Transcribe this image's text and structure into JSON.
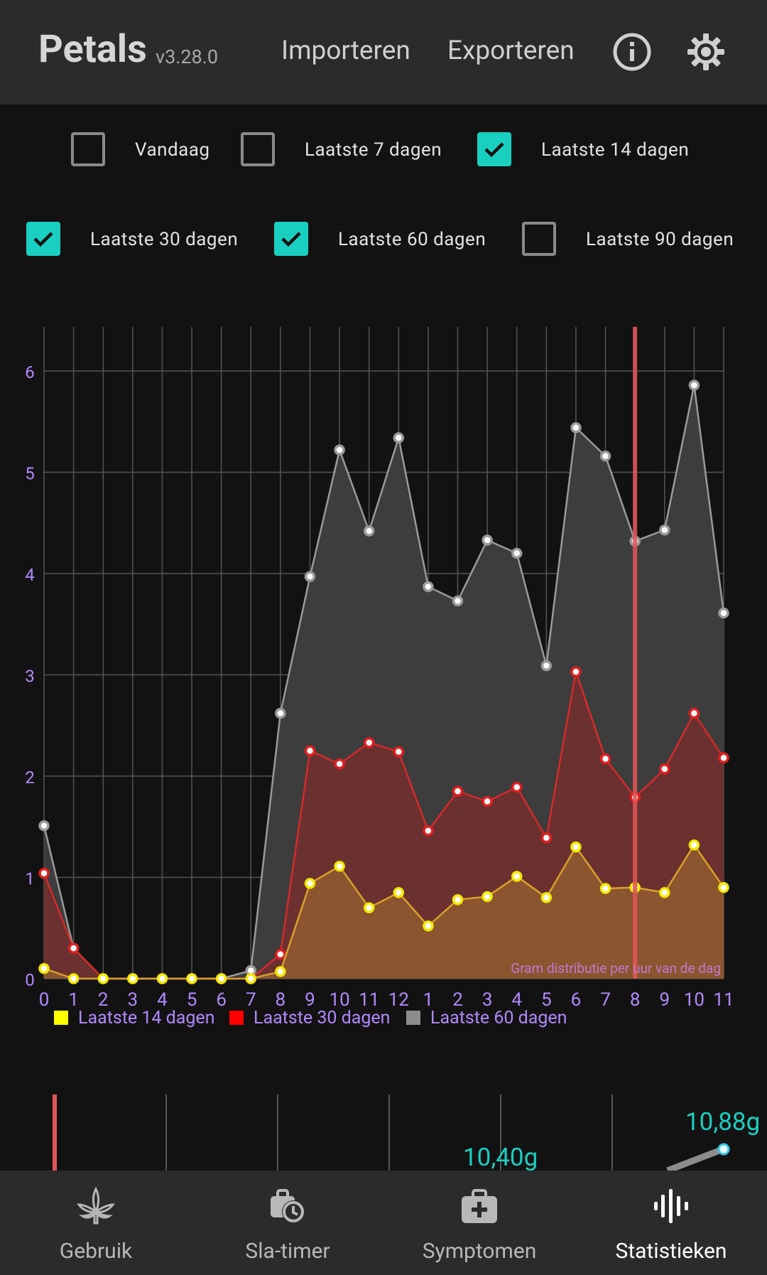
{
  "app": {
    "title": "Petals",
    "version": "v3.28.0"
  },
  "toolbar": {
    "import_label": "Importeren",
    "export_label": "Exporteren"
  },
  "filters": [
    {
      "label": "Vandaag",
      "checked": false
    },
    {
      "label": "Laatste 7 dagen",
      "checked": false
    },
    {
      "label": "Laatste 14 dagen",
      "checked": true
    },
    {
      "label": "Laatste 30 dagen",
      "checked": true
    },
    {
      "label": "Laatste 60 dagen",
      "checked": true
    },
    {
      "label": "Laatste 90 dagen",
      "checked": false
    }
  ],
  "chart_data": {
    "type": "area",
    "categories": [
      "0",
      "1",
      "2",
      "3",
      "4",
      "5",
      "6",
      "7",
      "8",
      "9",
      "10",
      "11",
      "12",
      "1",
      "2",
      "3",
      "4",
      "5",
      "6",
      "7",
      "8",
      "9",
      "10",
      "11"
    ],
    "series": [
      {
        "name": "Laatste 60 dagen",
        "color": "#8c8c8c",
        "values": [
          1.51,
          0.3,
          0,
          0,
          0,
          0,
          0,
          0.08,
          2.62,
          3.97,
          5.22,
          4.42,
          5.34,
          3.87,
          3.73,
          4.33,
          4.2,
          3.09,
          5.44,
          5.16,
          4.32,
          4.43,
          5.86,
          3.61
        ]
      },
      {
        "name": "Laatste 30 dagen",
        "color": "#e01f1f",
        "values": [
          1.04,
          0.3,
          0,
          0,
          0,
          0,
          0,
          0,
          0.24,
          2.25,
          2.12,
          2.33,
          2.24,
          1.46,
          1.85,
          1.75,
          1.89,
          1.39,
          3.03,
          2.17,
          1.79,
          2.07,
          2.62,
          2.18
        ]
      },
      {
        "name": "Laatste 14 dagen",
        "color": "#ffff00",
        "values": [
          0.1,
          0,
          0,
          0,
          0,
          0,
          0,
          0,
          0.07,
          0.94,
          1.11,
          0.7,
          0.85,
          0.52,
          0.78,
          0.81,
          1.01,
          0.8,
          1.3,
          0.89,
          0.9,
          0.85,
          1.32,
          0.9
        ]
      }
    ],
    "y_ticks": [
      0,
      1,
      2,
      3,
      4,
      5,
      6
    ],
    "ylim": [
      0,
      6.45
    ],
    "annotation": "Gram distributie per uur van de dag",
    "legend": [
      "Laatste 14 dagen",
      "Laatste 30 dagen",
      "Laatste 60 dagen"
    ],
    "legend_placement": "bottom-left",
    "marker_hour": "8",
    "grid": true
  },
  "second_chart": {
    "label_a": "10,40g",
    "label_b": "10,88g"
  },
  "nav": [
    {
      "label": "Gebruik",
      "icon": "cannabis-leaf-icon"
    },
    {
      "label": "Sla-timer",
      "icon": "sleep-timer-icon"
    },
    {
      "label": "Symptomen",
      "icon": "medical-kit-icon"
    },
    {
      "label": "Statistieken",
      "icon": "statistics-icon"
    }
  ],
  "colors": {
    "accent": "#19cfc0",
    "axis_label": "#b388ff",
    "marker": "#e05555"
  }
}
